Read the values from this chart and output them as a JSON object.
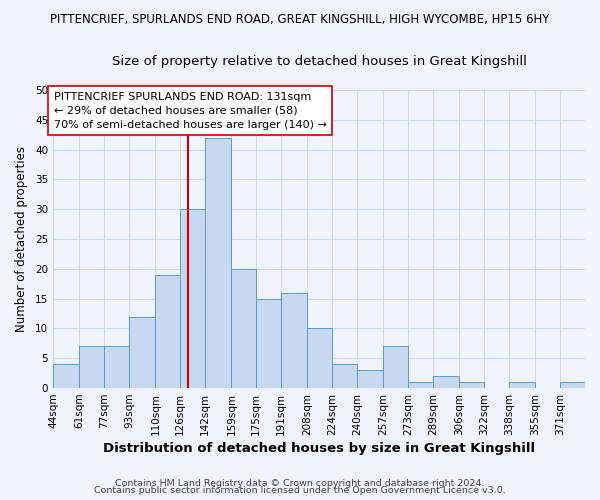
{
  "title_line1": "PITTENCRIEF, SPURLANDS END ROAD, GREAT KINGSHILL, HIGH WYCOMBE, HP15 6HY",
  "title_line2": "Size of property relative to detached houses in Great Kingshill",
  "xlabel": "Distribution of detached houses by size in Great Kingshill",
  "ylabel": "Number of detached properties",
  "bin_labels": [
    "44sqm",
    "61sqm",
    "77sqm",
    "93sqm",
    "110sqm",
    "126sqm",
    "142sqm",
    "159sqm",
    "175sqm",
    "191sqm",
    "208sqm",
    "224sqm",
    "240sqm",
    "257sqm",
    "273sqm",
    "289sqm",
    "306sqm",
    "322sqm",
    "338sqm",
    "355sqm",
    "371sqm"
  ],
  "bin_edges": [
    44,
    61,
    77,
    93,
    110,
    126,
    142,
    159,
    175,
    191,
    208,
    224,
    240,
    257,
    273,
    289,
    306,
    322,
    338,
    355,
    371,
    387
  ],
  "counts": [
    4,
    7,
    7,
    12,
    19,
    30,
    42,
    20,
    15,
    16,
    10,
    4,
    3,
    7,
    1,
    2,
    1,
    0,
    1,
    0,
    1
  ],
  "bar_color": "#c6d9f1",
  "bar_edge_color": "#5b9bd5",
  "vline_x": 131,
  "vline_color": "#cc0000",
  "annotation_text": "PITTENCRIEF SPURLANDS END ROAD: 131sqm\n← 29% of detached houses are smaller (58)\n70% of semi-detached houses are larger (140) →",
  "annotation_box_color": "white",
  "annotation_box_edge": "#cc0000",
  "ylim": [
    0,
    50
  ],
  "yticks": [
    0,
    5,
    10,
    15,
    20,
    25,
    30,
    35,
    40,
    45,
    50
  ],
  "footer_line1": "Contains HM Land Registry data © Crown copyright and database right 2024.",
  "footer_line2": "Contains public sector information licensed under the Open Government Licence v3.0.",
  "bg_color": "#f0f4ff",
  "grid_color": "#ccd8ec",
  "title1_fontsize": 8.5,
  "title2_fontsize": 9.5,
  "xlabel_fontsize": 9.5,
  "ylabel_fontsize": 8.5,
  "annotation_fontsize": 8.0,
  "footer_fontsize": 6.8,
  "tick_fontsize": 7.5
}
